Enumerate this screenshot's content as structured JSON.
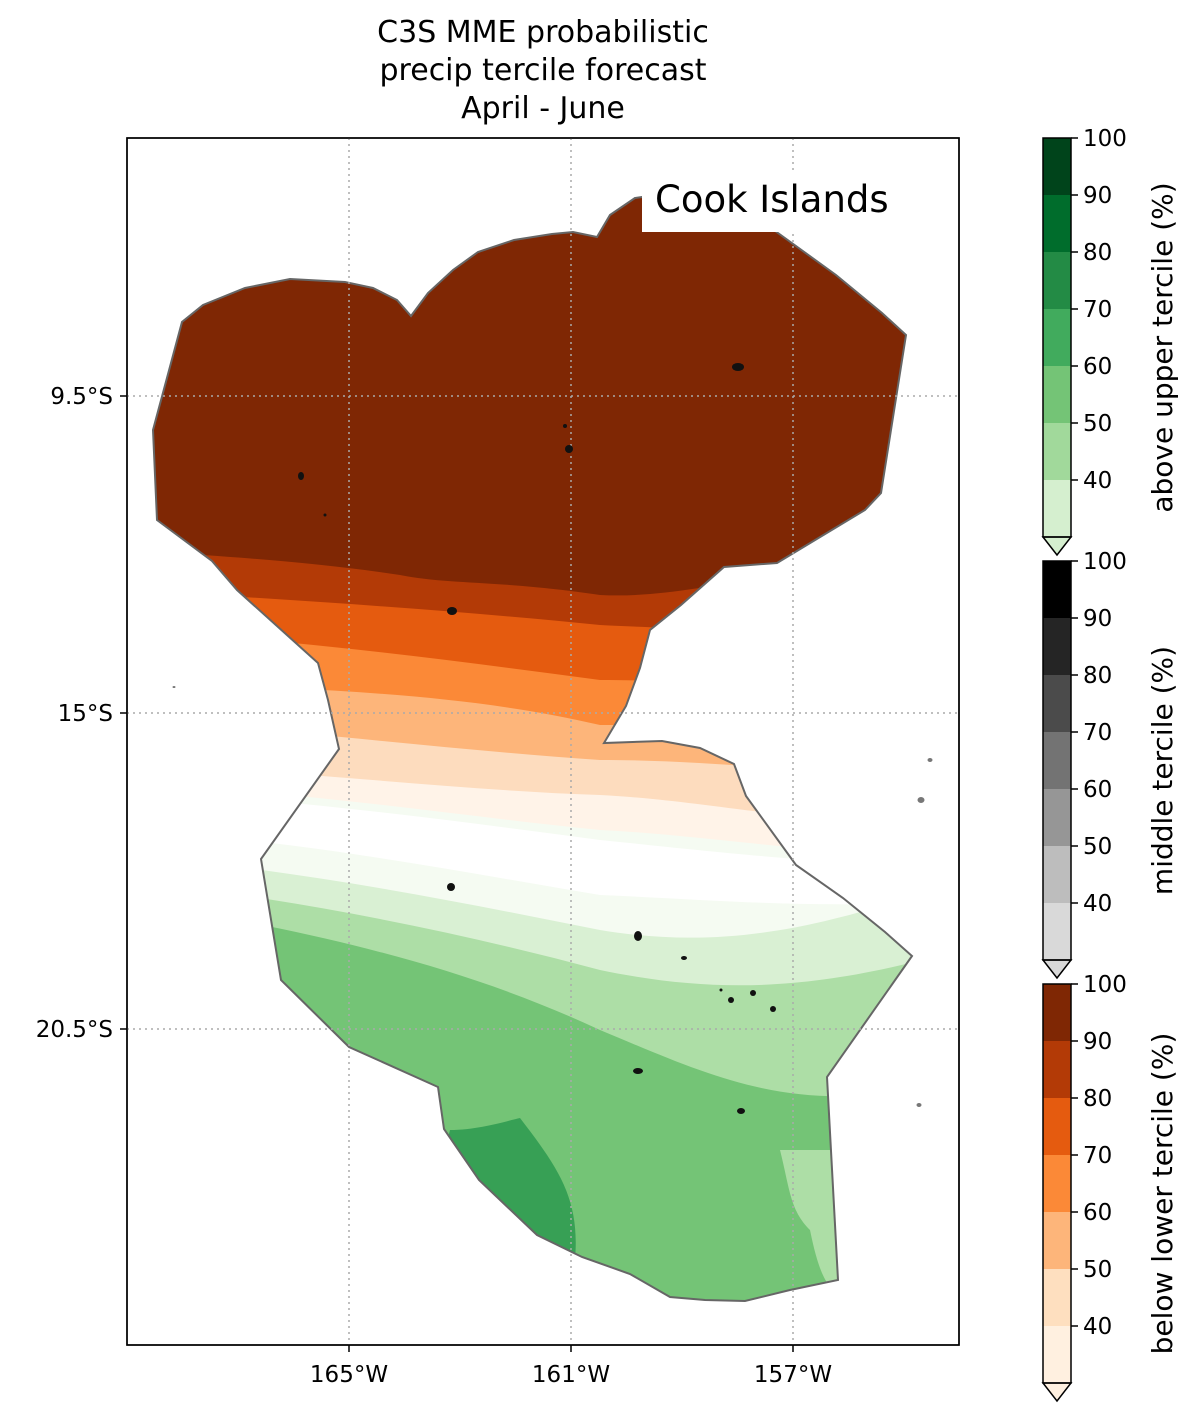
{
  "title": {
    "line1": "C3S MME probabilistic",
    "line2": "precip tercile forecast",
    "line3": "April - June"
  },
  "map": {
    "region_label": "Cook Islands",
    "lon_ticks": [
      "165°W",
      "161°W",
      "157°W"
    ],
    "lat_ticks": [
      "9.5°S",
      "15°S",
      "20.5°S"
    ],
    "gridlines": true,
    "gridline_style": "dotted"
  },
  "legend": {
    "colorbars": [
      {
        "label": "above upper tercile (%)",
        "ticks": [
          "100",
          "90",
          "80",
          "70",
          "60",
          "50",
          "40"
        ],
        "colors": [
          "#00441b",
          "#006d2c",
          "#238b45",
          "#41ab5d",
          "#74c476",
          "#a1d99b",
          "#d5efcf"
        ]
      },
      {
        "label": "middle tercile (%)",
        "ticks": [
          "100",
          "90",
          "80",
          "70",
          "60",
          "50",
          "40"
        ],
        "colors": [
          "#000000",
          "#252525",
          "#4b4b4b",
          "#737373",
          "#969696",
          "#bdbdbd",
          "#d9d9d9"
        ]
      },
      {
        "label": "below lower tercile (%)",
        "ticks": [
          "100",
          "90",
          "80",
          "70",
          "60",
          "50",
          "40"
        ],
        "colors": [
          "#7f2704",
          "#b33a06",
          "#e55b0f",
          "#fb8937",
          "#fdb57a",
          "#fedfbf",
          "#fff0e0"
        ]
      }
    ]
  },
  "colors": {
    "frame": "#000000",
    "eez_outline": "#666666",
    "gridline": "#aaaaaa"
  }
}
